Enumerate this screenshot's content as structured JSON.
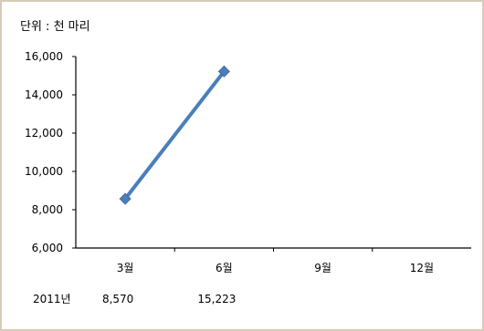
{
  "chart_data": {
    "type": "line",
    "unit_label": "단위 : 천 마리",
    "categories": [
      "3월",
      "6월",
      "9월",
      "12월"
    ],
    "series": [
      {
        "values": [
          8570,
          15223,
          null,
          null
        ]
      }
    ],
    "ylim": [
      6000,
      16000
    ],
    "yticks": [
      6000,
      8000,
      10000,
      12000,
      14000,
      16000
    ],
    "ytick_labels": [
      "6,000",
      "8,000",
      "10,000",
      "12,000",
      "14,000",
      "16,000"
    ],
    "grid": false,
    "legend": "none",
    "line_color": "#4a7ebb",
    "table": {
      "row_label": "2011년",
      "cells": [
        "8,570",
        "15,223",
        "",
        ""
      ]
    }
  }
}
